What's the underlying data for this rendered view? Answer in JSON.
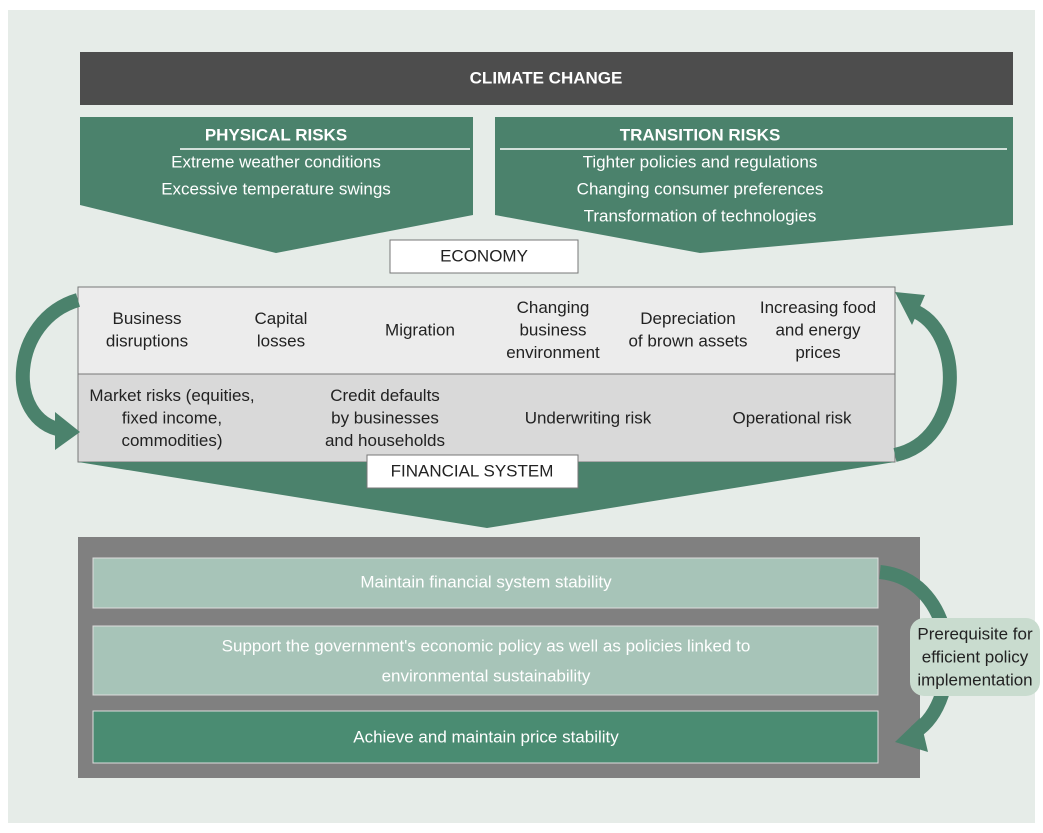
{
  "title": "CLIMATE CHANGE",
  "risks": [
    {
      "title": "PHYSICAL RISKS",
      "items": [
        "Extreme weather conditions",
        "Excessive temperature swings"
      ]
    },
    {
      "title": "TRANSITION RISKS",
      "items": [
        "Tighter policies and regulations",
        "Changing consumer preferences",
        "Transformation of technologies"
      ]
    }
  ],
  "economy": {
    "label": "ECONOMY",
    "items": [
      [
        "Business",
        "disruptions"
      ],
      [
        "Capital",
        "losses"
      ],
      [
        "Migration"
      ],
      [
        "Changing",
        "business",
        "environment"
      ],
      [
        "Depreciation",
        "of brown assets"
      ],
      [
        "Increasing food",
        "and energy",
        "prices"
      ]
    ]
  },
  "financial_system": {
    "label": "FINANCIAL SYSTEM",
    "items": [
      [
        "Market risks (equities,",
        "fixed income,",
        "commodities)"
      ],
      [
        "Credit defaults",
        "by businesses",
        "and households"
      ],
      [
        "Underwriting risk"
      ],
      [
        "Operational risk"
      ]
    ]
  },
  "objectives": [
    [
      "Maintain financial system stability"
    ],
    [
      "Support the government's economic policy as well as policies linked to",
      "environmental sustainability"
    ],
    [
      "Achieve and maintain price stability"
    ]
  ],
  "note": [
    "Prerequisite for",
    "efficient policy",
    "implementation"
  ]
}
